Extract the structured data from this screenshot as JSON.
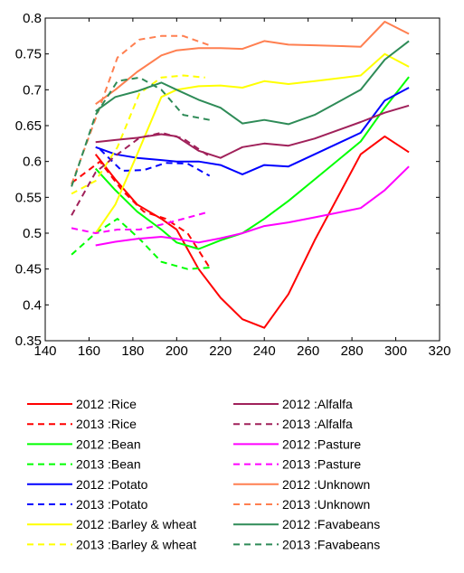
{
  "chart_data": {
    "type": "line",
    "xlim": [
      140,
      320
    ],
    "ylim": [
      0.35,
      0.8
    ],
    "xticks": [
      "140",
      "160",
      "180",
      "200",
      "220",
      "240",
      "260",
      "280",
      "300",
      "320"
    ],
    "yticks": [
      "0.35",
      "0.4",
      "0.45",
      "0.5",
      "0.55",
      "0.6",
      "0.65",
      "0.7",
      "0.75",
      "0.8"
    ],
    "grid": false,
    "legend_position": "bottom",
    "series": [
      {
        "name": "2012 :Rice",
        "color": "#ff0000",
        "style": "solid",
        "x": [
          163,
          172,
          182,
          193,
          200,
          210,
          220,
          230,
          240,
          251,
          263,
          284,
          295,
          306
        ],
        "y": [
          0.61,
          0.575,
          0.54,
          0.52,
          0.505,
          0.45,
          0.41,
          0.38,
          0.368,
          0.415,
          0.49,
          0.61,
          0.635,
          0.613
        ]
      },
      {
        "name": "2013 :Rice",
        "color": "#ff0000",
        "style": "dashed",
        "x": [
          152,
          165,
          175,
          185,
          195,
          205,
          215
        ],
        "y": [
          0.57,
          0.6,
          0.56,
          0.53,
          0.52,
          0.5,
          0.452
        ]
      },
      {
        "name": "2012 :Bean",
        "color": "#00ff00",
        "style": "solid",
        "x": [
          163,
          172,
          182,
          193,
          200,
          210,
          220,
          230,
          240,
          251,
          263,
          284,
          295,
          306
        ],
        "y": [
          0.59,
          0.56,
          0.53,
          0.505,
          0.487,
          0.478,
          0.49,
          0.5,
          0.52,
          0.545,
          0.575,
          0.628,
          0.675,
          0.718
        ]
      },
      {
        "name": "2013 :Bean",
        "color": "#00ff00",
        "style": "dashed",
        "x": [
          152,
          163,
          173,
          183,
          193,
          205,
          215
        ],
        "y": [
          0.47,
          0.5,
          0.52,
          0.492,
          0.46,
          0.45,
          0.452
        ]
      },
      {
        "name": "2012 :Potato",
        "color": "#0000ff",
        "style": "solid",
        "x": [
          163,
          172,
          182,
          193,
          200,
          210,
          220,
          230,
          240,
          251,
          263,
          284,
          295,
          306
        ],
        "y": [
          0.62,
          0.61,
          0.605,
          0.602,
          0.6,
          0.6,
          0.595,
          0.582,
          0.595,
          0.593,
          0.61,
          0.64,
          0.685,
          0.703
        ]
      },
      {
        "name": "2013 :Potato",
        "color": "#0000ff",
        "style": "dashed",
        "x": [
          165,
          175,
          185,
          195,
          205,
          215
        ],
        "y": [
          0.617,
          0.587,
          0.588,
          0.598,
          0.597,
          0.58
        ]
      },
      {
        "name": "2012 :Barley & wheat",
        "color": "#ffff00",
        "style": "solid",
        "x": [
          163,
          172,
          182,
          193,
          200,
          210,
          220,
          230,
          240,
          251,
          263,
          284,
          295,
          306
        ],
        "y": [
          0.5,
          0.54,
          0.61,
          0.69,
          0.7,
          0.705,
          0.706,
          0.703,
          0.712,
          0.708,
          0.712,
          0.72,
          0.75,
          0.732
        ]
      },
      {
        "name": "2013 :Barley & wheat",
        "color": "#ffff00",
        "style": "dashed",
        "x": [
          152,
          163,
          173,
          183,
          193,
          203,
          213
        ],
        "y": [
          0.555,
          0.573,
          0.62,
          0.695,
          0.717,
          0.72,
          0.717
        ]
      },
      {
        "name": "2012 :Alfalfa",
        "color": "#a0215a",
        "style": "solid",
        "x": [
          163,
          172,
          182,
          193,
          200,
          210,
          220,
          230,
          240,
          251,
          263,
          284,
          295,
          306
        ],
        "y": [
          0.627,
          0.63,
          0.633,
          0.638,
          0.635,
          0.615,
          0.605,
          0.62,
          0.625,
          0.622,
          0.632,
          0.655,
          0.668,
          0.678
        ]
      },
      {
        "name": "2013 :Alfalfa",
        "color": "#a0215a",
        "style": "dashed",
        "x": [
          152,
          163,
          173,
          183,
          193,
          203,
          215
        ],
        "y": [
          0.525,
          0.585,
          0.61,
          0.633,
          0.64,
          0.632,
          0.607
        ]
      },
      {
        "name": "2012 :Pasture",
        "color": "#ff00ff",
        "style": "solid",
        "x": [
          163,
          172,
          182,
          193,
          200,
          210,
          220,
          230,
          240,
          251,
          263,
          284,
          295,
          306
        ],
        "y": [
          0.483,
          0.488,
          0.492,
          0.495,
          0.492,
          0.487,
          0.493,
          0.5,
          0.51,
          0.515,
          0.522,
          0.535,
          0.56,
          0.593
        ]
      },
      {
        "name": "2013 :Pasture",
        "color": "#ff00ff",
        "style": "dashed",
        "x": [
          152,
          163,
          173,
          183,
          193,
          203,
          215
        ],
        "y": [
          0.507,
          0.5,
          0.505,
          0.505,
          0.512,
          0.52,
          0.53
        ]
      },
      {
        "name": "2012 :Unknown",
        "color": "#ff7f50",
        "style": "solid",
        "x": [
          163,
          172,
          182,
          193,
          200,
          210,
          220,
          230,
          240,
          251,
          263,
          284,
          295,
          306
        ],
        "y": [
          0.68,
          0.7,
          0.725,
          0.748,
          0.755,
          0.758,
          0.758,
          0.757,
          0.768,
          0.763,
          0.762,
          0.76,
          0.795,
          0.778
        ]
      },
      {
        "name": "2013 :Unknown",
        "color": "#ff7f50",
        "style": "dashed",
        "x": [
          152,
          163,
          173,
          183,
          193,
          203,
          215
        ],
        "y": [
          0.568,
          0.66,
          0.745,
          0.77,
          0.775,
          0.775,
          0.762
        ]
      },
      {
        "name": "2012 :Favabeans",
        "color": "#2e8b57",
        "style": "solid",
        "x": [
          163,
          172,
          182,
          193,
          200,
          210,
          220,
          230,
          240,
          251,
          263,
          284,
          295,
          306
        ],
        "y": [
          0.67,
          0.69,
          0.698,
          0.71,
          0.7,
          0.686,
          0.675,
          0.653,
          0.658,
          0.652,
          0.665,
          0.7,
          0.742,
          0.768
        ]
      },
      {
        "name": "2013 :Favabeans",
        "color": "#2e8b57",
        "style": "dashed",
        "x": [
          152,
          163,
          173,
          183,
          193,
          203,
          215
        ],
        "y": [
          0.565,
          0.665,
          0.712,
          0.717,
          0.7,
          0.665,
          0.658
        ]
      }
    ]
  }
}
